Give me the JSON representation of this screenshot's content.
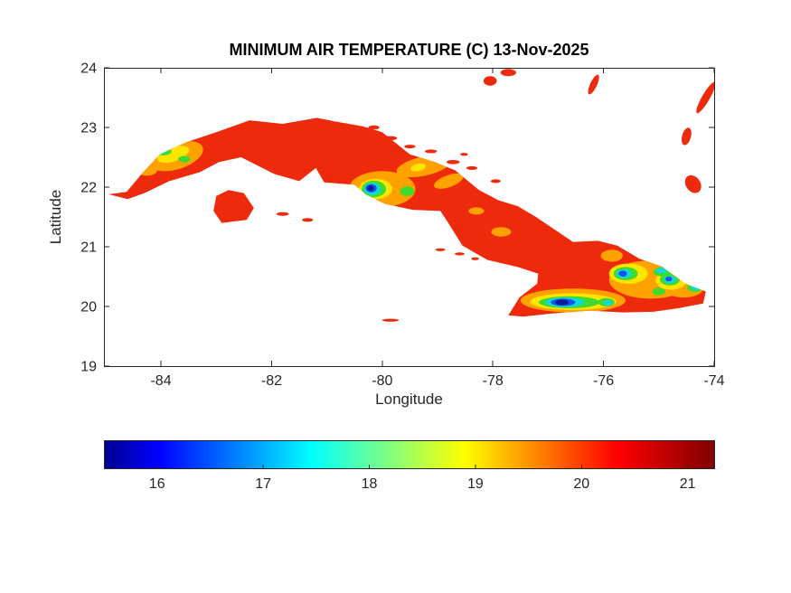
{
  "palette": {
    "background": "#FFFFFF",
    "axis_color": "#262626",
    "title_color": "#000000"
  },
  "chart_data": {
    "type": "heatmap",
    "title": "MINIMUM AIR TEMPERATURE (C) 13-Nov-2025",
    "xlabel": "Longitude",
    "ylabel": "Latitude",
    "xlim": [
      -85.03,
      -74.0
    ],
    "ylim": [
      19,
      24
    ],
    "grid": false,
    "xticks": [
      -84,
      -82,
      -80,
      -78,
      -76,
      -74
    ],
    "xtick_labels": [
      "-84",
      "-82",
      "-80",
      "-78",
      "-76",
      "-74"
    ],
    "yticks": [
      19,
      20,
      21,
      22,
      23,
      24
    ],
    "ytick_labels": [
      "19",
      "20",
      "21",
      "22",
      "23",
      "24"
    ],
    "land_base_temp_c": 21,
    "base_color": "#EE2A0C",
    "colorbar": {
      "orientation": "horizontal",
      "min": 15.5,
      "max": 21.25,
      "ticks": [
        16,
        17,
        18,
        19,
        20,
        21
      ],
      "tick_labels": [
        "16",
        "17",
        "18",
        "19",
        "20",
        "21"
      ],
      "colormap": "jet",
      "gradient": [
        {
          "at": 0.0,
          "color": "#00008F"
        },
        {
          "at": 0.09,
          "color": "#0000FF"
        },
        {
          "at": 0.34,
          "color": "#00FFFF"
        },
        {
          "at": 0.59,
          "color": "#FFFF00"
        },
        {
          "at": 0.84,
          "color": "#FF0000"
        },
        {
          "at": 1.0,
          "color": "#800000"
        }
      ]
    },
    "cuba_outline": [
      [
        -84.95,
        21.88
      ],
      [
        -84.62,
        21.92
      ],
      [
        -84.35,
        22.22
      ],
      [
        -84.02,
        22.55
      ],
      [
        -83.55,
        22.75
      ],
      [
        -83.0,
        22.92
      ],
      [
        -82.4,
        23.12
      ],
      [
        -81.8,
        23.06
      ],
      [
        -81.18,
        23.16
      ],
      [
        -80.85,
        23.1
      ],
      [
        -80.35,
        23.02
      ],
      [
        -80.0,
        22.92
      ],
      [
        -79.5,
        22.55
      ],
      [
        -79.05,
        22.42
      ],
      [
        -78.68,
        22.28
      ],
      [
        -78.25,
        21.95
      ],
      [
        -77.9,
        21.78
      ],
      [
        -77.55,
        21.68
      ],
      [
        -77.22,
        21.5
      ],
      [
        -76.9,
        21.3
      ],
      [
        -76.55,
        21.08
      ],
      [
        -76.1,
        21.1
      ],
      [
        -75.75,
        21.02
      ],
      [
        -75.35,
        20.8
      ],
      [
        -74.95,
        20.67
      ],
      [
        -74.52,
        20.38
      ],
      [
        -74.15,
        20.25
      ],
      [
        -74.2,
        20.05
      ],
      [
        -74.65,
        19.97
      ],
      [
        -75.1,
        19.91
      ],
      [
        -75.65,
        19.9
      ],
      [
        -76.25,
        19.93
      ],
      [
        -76.95,
        19.88
      ],
      [
        -77.45,
        19.83
      ],
      [
        -77.72,
        19.85
      ],
      [
        -77.52,
        20.15
      ],
      [
        -77.2,
        20.38
      ],
      [
        -77.18,
        20.55
      ],
      [
        -77.55,
        20.66
      ],
      [
        -78.1,
        20.78
      ],
      [
        -78.55,
        21.02
      ],
      [
        -78.82,
        21.42
      ],
      [
        -78.95,
        21.6
      ],
      [
        -79.45,
        21.62
      ],
      [
        -79.95,
        21.72
      ],
      [
        -80.3,
        21.88
      ],
      [
        -80.5,
        22.04
      ],
      [
        -81.05,
        22.08
      ],
      [
        -81.2,
        22.32
      ],
      [
        -81.5,
        22.1
      ],
      [
        -81.95,
        22.22
      ],
      [
        -82.55,
        22.5
      ],
      [
        -82.95,
        22.42
      ],
      [
        -83.3,
        22.25
      ],
      [
        -83.85,
        22.1
      ],
      [
        -84.3,
        21.9
      ],
      [
        -84.6,
        21.8
      ]
    ],
    "isla_juventud_outline": [
      [
        -83.05,
        21.6
      ],
      [
        -83.0,
        21.85
      ],
      [
        -82.78,
        21.95
      ],
      [
        -82.5,
        21.9
      ],
      [
        -82.32,
        21.65
      ],
      [
        -82.45,
        21.45
      ],
      [
        -82.9,
        21.4
      ]
    ],
    "islets": [
      {
        "lon": -80.15,
        "lat": 23.0,
        "rx": 0.1,
        "ry": 0.035,
        "rot": 0
      },
      {
        "lon": -79.85,
        "lat": 22.82,
        "rx": 0.12,
        "ry": 0.035,
        "rot": 0
      },
      {
        "lon": -79.5,
        "lat": 22.68,
        "rx": 0.1,
        "ry": 0.03,
        "rot": 0
      },
      {
        "lon": -79.12,
        "lat": 22.6,
        "rx": 0.11,
        "ry": 0.03,
        "rot": 0
      },
      {
        "lon": -78.72,
        "lat": 22.42,
        "rx": 0.12,
        "ry": 0.035,
        "rot": 0
      },
      {
        "lon": -78.38,
        "lat": 22.32,
        "rx": 0.1,
        "ry": 0.03,
        "rot": 0
      },
      {
        "lon": -78.52,
        "lat": 22.55,
        "rx": 0.07,
        "ry": 0.025,
        "rot": 0
      },
      {
        "lon": -77.95,
        "lat": 22.1,
        "rx": 0.09,
        "ry": 0.03,
        "rot": 0
      },
      {
        "lon": -78.95,
        "lat": 20.95,
        "rx": 0.09,
        "ry": 0.025,
        "rot": 0
      },
      {
        "lon": -78.6,
        "lat": 20.88,
        "rx": 0.09,
        "ry": 0.025,
        "rot": 0
      },
      {
        "lon": -78.32,
        "lat": 20.8,
        "rx": 0.07,
        "ry": 0.025,
        "rot": 0
      },
      {
        "lon": -81.35,
        "lat": 21.45,
        "rx": 0.1,
        "ry": 0.03,
        "rot": 0
      },
      {
        "lon": -81.8,
        "lat": 21.55,
        "rx": 0.11,
        "ry": 0.03,
        "rot": 0
      },
      {
        "lon": -79.85,
        "lat": 19.77,
        "rx": 0.15,
        "ry": 0.025,
        "rot": 0
      },
      {
        "lon": -78.05,
        "lat": 23.78,
        "rx": 0.12,
        "ry": 0.08,
        "rot": 0
      },
      {
        "lon": -77.72,
        "lat": 23.92,
        "rx": 0.14,
        "ry": 0.06,
        "rot": 0
      },
      {
        "lon": -76.18,
        "lat": 23.72,
        "rx": 0.06,
        "ry": 0.18,
        "rot": 25
      },
      {
        "lon": -74.15,
        "lat": 23.5,
        "rx": 0.07,
        "ry": 0.3,
        "rot": 30
      },
      {
        "lon": -74.5,
        "lat": 22.85,
        "rx": 0.08,
        "ry": 0.15,
        "rot": 15
      },
      {
        "lon": -74.38,
        "lat": 22.05,
        "rx": 0.13,
        "ry": 0.16,
        "rot": -35
      }
    ],
    "cold_patches": [
      {
        "lon": -83.72,
        "lat": 22.52,
        "rx": 0.5,
        "ry": 0.22,
        "rot": -18,
        "color": "#FFA200",
        "temp_c": 19.8
      },
      {
        "lon": -84.25,
        "lat": 22.28,
        "rx": 0.18,
        "ry": 0.09,
        "rot": 0,
        "color": "#FFA200",
        "temp_c": 19.8
      },
      {
        "lon": -80.0,
        "lat": 21.97,
        "rx": 0.6,
        "ry": 0.3,
        "rot": 0,
        "color": "#FFA200",
        "temp_c": 19.8
      },
      {
        "lon": -79.25,
        "lat": 22.35,
        "rx": 0.5,
        "ry": 0.16,
        "rot": -12,
        "color": "#FFA200",
        "temp_c": 19.8
      },
      {
        "lon": -78.8,
        "lat": 22.1,
        "rx": 0.28,
        "ry": 0.1,
        "rot": -20,
        "color": "#FFA200",
        "temp_c": 19.8
      },
      {
        "lon": -77.85,
        "lat": 21.25,
        "rx": 0.18,
        "ry": 0.08,
        "rot": 0,
        "color": "#FFA200",
        "temp_c": 19.8
      },
      {
        "lon": -78.3,
        "lat": 21.6,
        "rx": 0.14,
        "ry": 0.06,
        "rot": 0,
        "color": "#FFA200",
        "temp_c": 19.8
      },
      {
        "lon": -76.55,
        "lat": 20.1,
        "rx": 0.95,
        "ry": 0.2,
        "rot": 0,
        "color": "#FFA200",
        "temp_c": 19.8
      },
      {
        "lon": -75.15,
        "lat": 20.45,
        "rx": 0.75,
        "ry": 0.32,
        "rot": 0,
        "color": "#FFA200",
        "temp_c": 19.8
      },
      {
        "lon": -74.55,
        "lat": 20.3,
        "rx": 0.35,
        "ry": 0.15,
        "rot": 0,
        "color": "#FFA200",
        "temp_c": 19.8
      },
      {
        "lon": -75.85,
        "lat": 20.85,
        "rx": 0.2,
        "ry": 0.1,
        "rot": 0,
        "color": "#FFA200",
        "temp_c": 19.8
      },
      {
        "lon": -83.78,
        "lat": 22.55,
        "rx": 0.3,
        "ry": 0.12,
        "rot": -18,
        "color": "#FFE500",
        "temp_c": 19.0
      },
      {
        "lon": -80.12,
        "lat": 21.97,
        "rx": 0.3,
        "ry": 0.17,
        "rot": 0,
        "color": "#FFE500",
        "temp_c": 19.0
      },
      {
        "lon": -79.35,
        "lat": 22.33,
        "rx": 0.14,
        "ry": 0.06,
        "rot": -12,
        "color": "#FFE500",
        "temp_c": 19.0
      },
      {
        "lon": -76.55,
        "lat": 20.08,
        "rx": 0.78,
        "ry": 0.14,
        "rot": 0,
        "color": "#FFE500",
        "temp_c": 19.0
      },
      {
        "lon": -75.55,
        "lat": 20.55,
        "rx": 0.35,
        "ry": 0.17,
        "rot": 0,
        "color": "#FFE500",
        "temp_c": 19.0
      },
      {
        "lon": -74.78,
        "lat": 20.44,
        "rx": 0.28,
        "ry": 0.16,
        "rot": 0,
        "color": "#FFE500",
        "temp_c": 19.0
      },
      {
        "lon": -83.95,
        "lat": 22.6,
        "rx": 0.14,
        "ry": 0.07,
        "rot": 0,
        "color": "#3FDB2E",
        "temp_c": 18.2
      },
      {
        "lon": -83.58,
        "lat": 22.47,
        "rx": 0.11,
        "ry": 0.055,
        "rot": 0,
        "color": "#3FDB2E",
        "temp_c": 18.2
      },
      {
        "lon": -80.15,
        "lat": 21.97,
        "rx": 0.22,
        "ry": 0.14,
        "rot": 0,
        "color": "#3FDB2E",
        "temp_c": 18.2
      },
      {
        "lon": -79.55,
        "lat": 21.93,
        "rx": 0.13,
        "ry": 0.08,
        "rot": 0,
        "color": "#3FDB2E",
        "temp_c": 18.2
      },
      {
        "lon": -76.62,
        "lat": 20.07,
        "rx": 0.55,
        "ry": 0.1,
        "rot": 0,
        "color": "#3FDB2E",
        "temp_c": 18.2
      },
      {
        "lon": -75.95,
        "lat": 20.07,
        "rx": 0.15,
        "ry": 0.07,
        "rot": 0,
        "color": "#3FDB2E",
        "temp_c": 18.2
      },
      {
        "lon": -75.6,
        "lat": 20.55,
        "rx": 0.22,
        "ry": 0.11,
        "rot": 0,
        "color": "#3FDB2E",
        "temp_c": 18.2
      },
      {
        "lon": -74.8,
        "lat": 20.45,
        "rx": 0.18,
        "ry": 0.1,
        "rot": 0,
        "color": "#3FDB2E",
        "temp_c": 18.2
      },
      {
        "lon": -74.35,
        "lat": 20.32,
        "rx": 0.14,
        "ry": 0.08,
        "rot": 0,
        "color": "#3FDB2E",
        "temp_c": 18.2
      },
      {
        "lon": -74.9,
        "lat": 20.58,
        "rx": 0.2,
        "ry": 0.08,
        "rot": 0,
        "color": "#3FDB2E",
        "temp_c": 18.2
      },
      {
        "lon": -75.0,
        "lat": 20.25,
        "rx": 0.12,
        "ry": 0.06,
        "rot": 0,
        "color": "#3FDB2E",
        "temp_c": 18.2
      },
      {
        "lon": -83.97,
        "lat": 22.6,
        "rx": 0.06,
        "ry": 0.04,
        "rot": 0,
        "color": "#0FD8E0",
        "temp_c": 17.4
      },
      {
        "lon": -80.18,
        "lat": 21.97,
        "rx": 0.15,
        "ry": 0.1,
        "rot": 0,
        "color": "#0FD8E0",
        "temp_c": 17.4
      },
      {
        "lon": -76.7,
        "lat": 20.07,
        "rx": 0.35,
        "ry": 0.08,
        "rot": 0,
        "color": "#0FD8E0",
        "temp_c": 17.4
      },
      {
        "lon": -75.92,
        "lat": 20.06,
        "rx": 0.08,
        "ry": 0.045,
        "rot": 0,
        "color": "#0FD8E0",
        "temp_c": 17.4
      },
      {
        "lon": -75.63,
        "lat": 20.55,
        "rx": 0.13,
        "ry": 0.075,
        "rot": 0,
        "color": "#0FD8E0",
        "temp_c": 17.4
      },
      {
        "lon": -74.8,
        "lat": 20.45,
        "rx": 0.11,
        "ry": 0.06,
        "rot": 0,
        "color": "#0FD8E0",
        "temp_c": 17.4
      },
      {
        "lon": -74.33,
        "lat": 20.32,
        "rx": 0.08,
        "ry": 0.05,
        "rot": 0,
        "color": "#0FD8E0",
        "temp_c": 17.4
      },
      {
        "lon": -74.95,
        "lat": 20.6,
        "rx": 0.1,
        "ry": 0.045,
        "rot": 0,
        "color": "#0FD8E0",
        "temp_c": 17.4
      },
      {
        "lon": -80.2,
        "lat": 21.98,
        "rx": 0.1,
        "ry": 0.07,
        "rot": 0,
        "color": "#1A4FE8",
        "temp_c": 16.4
      },
      {
        "lon": -76.73,
        "lat": 20.07,
        "rx": 0.22,
        "ry": 0.06,
        "rot": 0,
        "color": "#1A4FE8",
        "temp_c": 16.4
      },
      {
        "lon": -75.65,
        "lat": 20.55,
        "rx": 0.075,
        "ry": 0.05,
        "rot": 0,
        "color": "#1A4FE8",
        "temp_c": 16.4
      },
      {
        "lon": -74.82,
        "lat": 20.46,
        "rx": 0.06,
        "ry": 0.04,
        "rot": 0,
        "color": "#1A4FE8",
        "temp_c": 16.4
      },
      {
        "lon": -80.21,
        "lat": 21.98,
        "rx": 0.055,
        "ry": 0.045,
        "rot": 0,
        "color": "#0A1C9C",
        "temp_c": 15.8
      },
      {
        "lon": -76.75,
        "lat": 20.07,
        "rx": 0.12,
        "ry": 0.045,
        "rot": 0,
        "color": "#0A1C9C",
        "temp_c": 15.8
      }
    ]
  }
}
